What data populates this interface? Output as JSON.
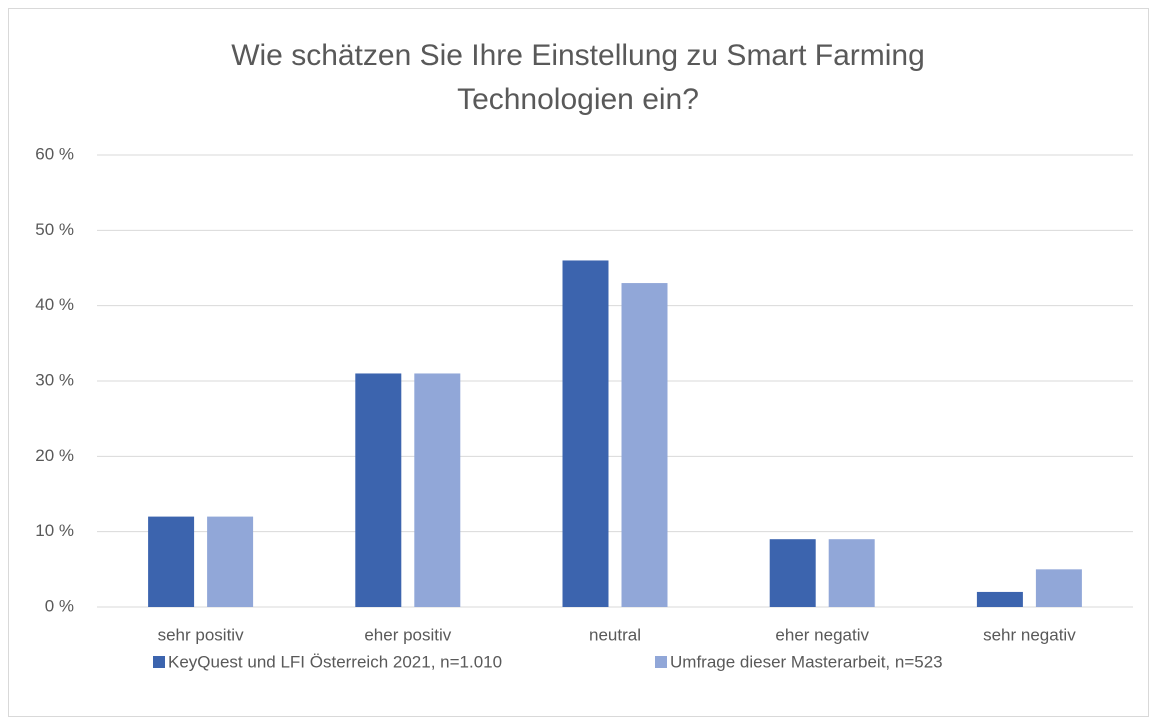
{
  "chart_data": {
    "type": "bar",
    "title": "Wie schätzen Sie Ihre Einstellung zu Smart Farming Technologien ein?",
    "categories": [
      "sehr positiv",
      "eher positiv",
      "neutral",
      "eher negativ",
      "sehr negativ"
    ],
    "series": [
      {
        "name": "KeyQuest und LFI Österreich 2021, n=1.010",
        "color": "#3c64ae",
        "values": [
          12,
          31,
          46,
          9,
          2
        ]
      },
      {
        "name": "Umfrage dieser Masterarbeit, n=523",
        "color": "#91a7d8",
        "values": [
          12,
          31,
          43,
          9,
          5
        ]
      }
    ],
    "ylim": [
      0,
      60
    ],
    "yticks": [
      {
        "value": 0,
        "label": "0 %"
      },
      {
        "value": 10,
        "label": "10 %"
      },
      {
        "value": 20,
        "label": "20 %"
      },
      {
        "value": 30,
        "label": "30 %"
      },
      {
        "value": 40,
        "label": "40 %"
      },
      {
        "value": 50,
        "label": "50 %"
      },
      {
        "value": 60,
        "label": "60 %"
      }
    ],
    "grid": true,
    "legend": "bottom"
  }
}
